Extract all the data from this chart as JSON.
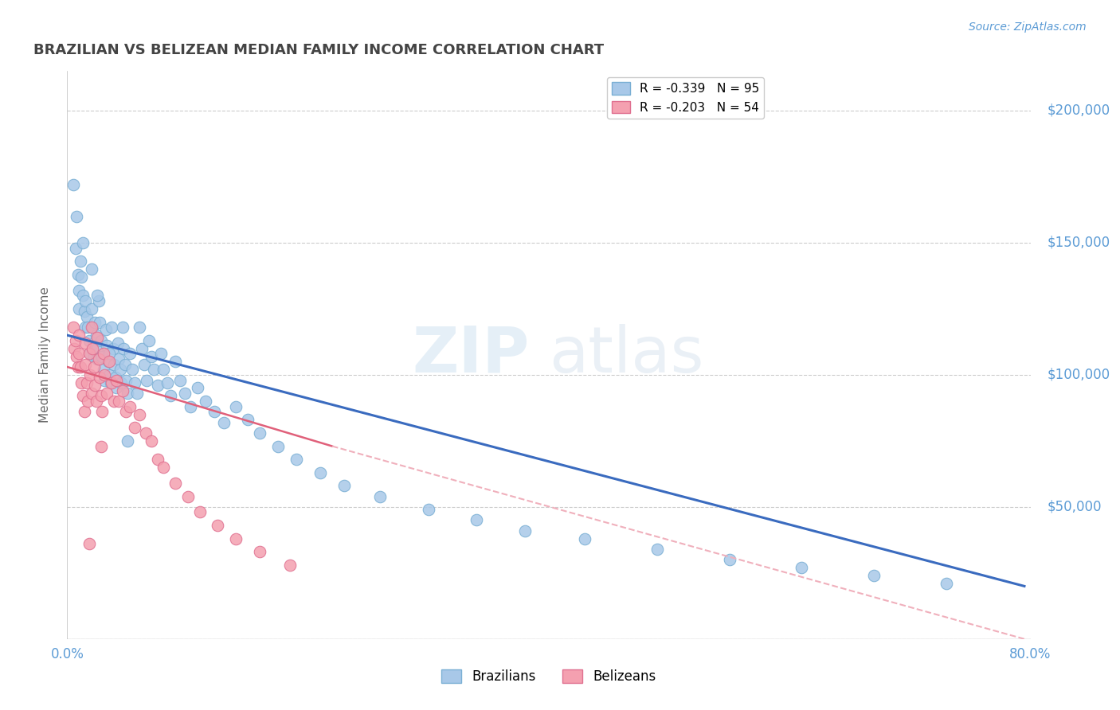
{
  "title": "BRAZILIAN VS BELIZEAN MEDIAN FAMILY INCOME CORRELATION CHART",
  "source_text": "Source: ZipAtlas.com",
  "ylabel": "Median Family Income",
  "right_ytick_values": [
    0,
    50000,
    100000,
    150000,
    200000
  ],
  "right_ytick_labels": [
    "",
    "$50,000",
    "$100,000",
    "$150,000",
    "$200,000"
  ],
  "xlim": [
    0.0,
    0.8
  ],
  "ylim": [
    0,
    215000
  ],
  "watermark_zip": "ZIP",
  "watermark_atlas": "atlas",
  "bg_color": "#ffffff",
  "grid_color": "#cccccc",
  "axis_color": "#bbbbbb",
  "label_color": "#5b9bd5",
  "title_color": "#444444",
  "legend_br_label": "R = -0.339   N = 95",
  "legend_be_label": "R = -0.203   N = 54",
  "brazilians_color": "#a8c8e8",
  "brazilians_edge": "#7aafd4",
  "belizeans_color": "#f4a0b0",
  "belizeans_edge": "#e07090",
  "trend_br_color": "#3a6bbf",
  "trend_be_solid_color": "#e0607a",
  "trend_be_dash_color": "#f0b0bc",
  "brazilians_x": [
    0.005,
    0.007,
    0.009,
    0.01,
    0.01,
    0.011,
    0.012,
    0.013,
    0.014,
    0.015,
    0.015,
    0.016,
    0.017,
    0.018,
    0.019,
    0.02,
    0.02,
    0.021,
    0.022,
    0.022,
    0.023,
    0.024,
    0.025,
    0.025,
    0.026,
    0.027,
    0.028,
    0.029,
    0.03,
    0.031,
    0.032,
    0.033,
    0.034,
    0.035,
    0.036,
    0.037,
    0.038,
    0.039,
    0.04,
    0.041,
    0.042,
    0.043,
    0.044,
    0.045,
    0.046,
    0.047,
    0.048,
    0.049,
    0.05,
    0.052,
    0.054,
    0.056,
    0.058,
    0.06,
    0.062,
    0.064,
    0.066,
    0.068,
    0.07,
    0.072,
    0.075,
    0.078,
    0.08,
    0.083,
    0.086,
    0.09,
    0.094,
    0.098,
    0.102,
    0.108,
    0.115,
    0.122,
    0.13,
    0.14,
    0.15,
    0.16,
    0.175,
    0.19,
    0.21,
    0.23,
    0.26,
    0.3,
    0.34,
    0.38,
    0.43,
    0.49,
    0.55,
    0.61,
    0.67,
    0.73,
    0.008,
    0.013,
    0.025,
    0.035,
    0.05
  ],
  "brazilians_y": [
    172000,
    148000,
    138000,
    132000,
    125000,
    143000,
    137000,
    130000,
    124000,
    118000,
    128000,
    122000,
    118000,
    113000,
    108000,
    140000,
    125000,
    118000,
    112000,
    107000,
    120000,
    115000,
    110000,
    106000,
    128000,
    120000,
    113000,
    107000,
    102000,
    98000,
    117000,
    111000,
    105000,
    100000,
    97000,
    118000,
    110000,
    104000,
    99000,
    95000,
    112000,
    106000,
    102000,
    97000,
    118000,
    110000,
    104000,
    98000,
    93000,
    108000,
    102000,
    97000,
    93000,
    118000,
    110000,
    104000,
    98000,
    113000,
    107000,
    102000,
    96000,
    108000,
    102000,
    97000,
    92000,
    105000,
    98000,
    93000,
    88000,
    95000,
    90000,
    86000,
    82000,
    88000,
    83000,
    78000,
    73000,
    68000,
    63000,
    58000,
    54000,
    49000,
    45000,
    41000,
    38000,
    34000,
    30000,
    27000,
    24000,
    21000,
    160000,
    150000,
    130000,
    108000,
    75000
  ],
  "belizeans_x": [
    0.005,
    0.006,
    0.007,
    0.008,
    0.009,
    0.01,
    0.01,
    0.011,
    0.012,
    0.013,
    0.014,
    0.015,
    0.015,
    0.016,
    0.017,
    0.018,
    0.019,
    0.02,
    0.02,
    0.021,
    0.022,
    0.023,
    0.024,
    0.025,
    0.026,
    0.027,
    0.028,
    0.029,
    0.03,
    0.031,
    0.033,
    0.035,
    0.037,
    0.039,
    0.041,
    0.043,
    0.046,
    0.049,
    0.052,
    0.056,
    0.06,
    0.065,
    0.07,
    0.075,
    0.08,
    0.09,
    0.1,
    0.11,
    0.125,
    0.14,
    0.16,
    0.185,
    0.018,
    0.028
  ],
  "belizeans_y": [
    118000,
    110000,
    113000,
    107000,
    103000,
    115000,
    108000,
    103000,
    97000,
    92000,
    86000,
    112000,
    104000,
    97000,
    90000,
    108000,
    100000,
    93000,
    118000,
    110000,
    103000,
    96000,
    90000,
    114000,
    106000,
    99000,
    92000,
    86000,
    108000,
    100000,
    93000,
    105000,
    97000,
    90000,
    98000,
    90000,
    94000,
    86000,
    88000,
    80000,
    85000,
    78000,
    75000,
    68000,
    65000,
    59000,
    54000,
    48000,
    43000,
    38000,
    33000,
    28000,
    36000,
    73000
  ],
  "trend_br_x0": 0.0,
  "trend_br_x1": 0.795,
  "trend_br_y0": 115000,
  "trend_br_y1": 20000,
  "trend_be_solid_x0": 0.0,
  "trend_be_solid_x1": 0.22,
  "trend_be_solid_y0": 103000,
  "trend_be_solid_y1": 73000,
  "trend_be_dash_x0": 0.22,
  "trend_be_dash_x1": 0.795,
  "trend_be_dash_y0": 73000,
  "trend_be_dash_y1": 0
}
